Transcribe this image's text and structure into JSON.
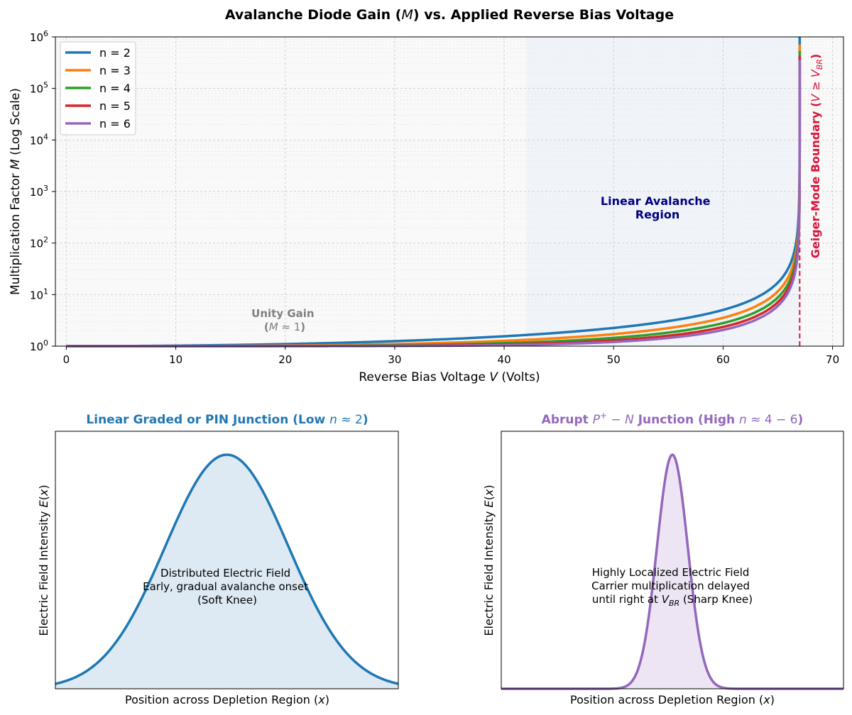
{
  "figure": {
    "title": "Avalanche Diode Gain (M) vs. Applied Reverse Bias Voltage"
  },
  "chart_data": [
    {
      "type": "line",
      "title": "Avalanche Diode Gain (M) vs. Applied Reverse Bias Voltage",
      "xlabel": "Reverse Bias Voltage V (Volts)",
      "ylabel": "Multiplication Factor M (Log Scale)",
      "xlim": [
        -1,
        71
      ],
      "ylim": [
        1,
        1000000
      ],
      "yscale": "log",
      "x_ticks": [
        0,
        10,
        20,
        30,
        40,
        50,
        60,
        70
      ],
      "x_tick_labels": [
        "0",
        "10",
        "20",
        "30",
        "40",
        "50",
        "60",
        "70"
      ],
      "y_ticks": [
        1,
        10,
        100,
        1000,
        10000,
        100000,
        1000000
      ],
      "y_tick_labels": [
        {
          "base": "10",
          "exp": "0"
        },
        {
          "base": "10",
          "exp": "1"
        },
        {
          "base": "10",
          "exp": "2"
        },
        {
          "base": "10",
          "exp": "3"
        },
        {
          "base": "10",
          "exp": "4"
        },
        {
          "base": "10",
          "exp": "5"
        },
        {
          "base": "10",
          "exp": "6"
        }
      ],
      "grid": true,
      "legend_position": "top-left",
      "breakdown_voltage": 67,
      "curve_model": "M = 1 / (1 - (V / 67)^n)",
      "series": [
        {
          "name": "n = 2",
          "n": 2,
          "color": "#1f77b4",
          "points": [
            [
              0,
              1.0
            ],
            [
              10,
              1.02
            ],
            [
              20,
              1.1
            ],
            [
              30,
              1.25
            ],
            [
              40,
              1.56
            ],
            [
              50,
              2.26
            ],
            [
              55,
              3.07
            ],
            [
              60,
              5.05
            ],
            [
              63,
              8.84
            ],
            [
              65,
              16.7
            ],
            [
              66,
              33.8
            ],
            [
              66.5,
              67.4
            ],
            [
              66.8,
              168
            ],
            [
              66.9,
              335
            ],
            [
              66.95,
              670
            ],
            [
              66.98,
              1675
            ],
            [
              66.99,
              3350
            ],
            [
              66.995,
              6700
            ],
            [
              66.998,
              16750
            ],
            [
              66.999,
              33500
            ],
            [
              66.9995,
              67000
            ],
            [
              66.9998,
              167500
            ],
            [
              66.9999,
              335000
            ],
            [
              66.99995,
              670000
            ],
            [
              66.99998,
              1000000
            ]
          ]
        },
        {
          "name": "n = 3",
          "n": 3,
          "color": "#ff7f0e",
          "points": [
            [
              0,
              1.0
            ],
            [
              10,
              1.0
            ],
            [
              20,
              1.03
            ],
            [
              30,
              1.1
            ],
            [
              40,
              1.27
            ],
            [
              50,
              1.71
            ],
            [
              55,
              2.24
            ],
            [
              60,
              3.55
            ],
            [
              63,
              5.99
            ],
            [
              65,
              11.0
            ],
            [
              66,
              22.3
            ],
            [
              66.5,
              44.8
            ],
            [
              66.8,
              112
            ],
            [
              66.9,
              224
            ],
            [
              66.95,
              447
            ],
            [
              66.98,
              1117
            ],
            [
              66.99,
              2233
            ],
            [
              66.995,
              4467
            ],
            [
              66.998,
              11167
            ],
            [
              66.999,
              22333
            ],
            [
              66.9995,
              44667
            ],
            [
              66.9998,
              111667
            ],
            [
              66.9999,
              223333
            ],
            [
              66.99995,
              446667
            ],
            [
              66.99998,
              1000000
            ]
          ]
        },
        {
          "name": "n = 4",
          "n": 4,
          "color": "#2ca02c",
          "points": [
            [
              0,
              1.0
            ],
            [
              10,
              1.0
            ],
            [
              20,
              1.01
            ],
            [
              30,
              1.04
            ],
            [
              40,
              1.15
            ],
            [
              50,
              1.45
            ],
            [
              55,
              1.83
            ],
            [
              60,
              2.8
            ],
            [
              63,
              4.58
            ],
            [
              65,
              8.37
            ],
            [
              66,
              16.9
            ],
            [
              66.5,
              33.8
            ],
            [
              66.8,
              84.3
            ],
            [
              66.9,
              168
            ],
            [
              66.95,
              335
            ],
            [
              66.98,
              838
            ],
            [
              66.99,
              1675
            ],
            [
              66.995,
              3350
            ],
            [
              66.998,
              8375
            ],
            [
              66.999,
              16750
            ],
            [
              66.9995,
              33500
            ],
            [
              66.9998,
              83750
            ],
            [
              66.9999,
              167500
            ],
            [
              66.99995,
              335000
            ],
            [
              66.99998,
              837500
            ]
          ]
        },
        {
          "name": "n = 5",
          "n": 5,
          "color": "#d62728",
          "points": [
            [
              0,
              1.0
            ],
            [
              10,
              1.0
            ],
            [
              20,
              1.0
            ],
            [
              30,
              1.02
            ],
            [
              40,
              1.08
            ],
            [
              50,
              1.3
            ],
            [
              55,
              1.59
            ],
            [
              60,
              2.35
            ],
            [
              63,
              3.73
            ],
            [
              65,
              6.77
            ],
            [
              66,
              13.6
            ],
            [
              66.5,
              27.1
            ],
            [
              66.8,
              67.5
            ],
            [
              66.9,
              134
            ],
            [
              66.95,
              268
            ],
            [
              66.98,
              670
            ],
            [
              66.99,
              1340
            ],
            [
              66.995,
              2680
            ],
            [
              66.998,
              6700
            ],
            [
              66.999,
              13400
            ],
            [
              66.9995,
              26800
            ],
            [
              66.9998,
              67000
            ],
            [
              66.9999,
              134000
            ],
            [
              66.99995,
              268000
            ],
            [
              66.99998,
              670000
            ]
          ]
        },
        {
          "name": "n = 6",
          "n": 6,
          "color": "#9467bd",
          "points": [
            [
              0,
              1.0
            ],
            [
              10,
              1.0
            ],
            [
              20,
              1.0
            ],
            [
              30,
              1.01
            ],
            [
              40,
              1.05
            ],
            [
              50,
              1.21
            ],
            [
              55,
              1.44
            ],
            [
              60,
              2.06
            ],
            [
              63,
              3.22
            ],
            [
              65,
              5.7
            ],
            [
              66,
              11.4
            ],
            [
              66.5,
              22.8
            ],
            [
              66.8,
              56.3
            ],
            [
              66.9,
              112
            ],
            [
              66.95,
              224
            ],
            [
              66.98,
              559
            ],
            [
              66.99,
              1117
            ],
            [
              66.995,
              2234
            ],
            [
              66.998,
              5584
            ],
            [
              66.999,
              11167
            ],
            [
              66.9995,
              22334
            ],
            [
              66.9998,
              55834
            ],
            [
              66.9999,
              111667
            ],
            [
              66.99995,
              223334
            ],
            [
              66.99998,
              558334
            ]
          ]
        }
      ],
      "regions": [
        {
          "name": "linear-avalanche",
          "x_start": 42,
          "x_end": 67,
          "color": "#dbe8f7"
        }
      ],
      "annotations": {
        "unity_gain": {
          "line1": "Unity Gain",
          "line2": "(M ≈ 1)",
          "x": 20,
          "y": 1.8,
          "color": "#808080"
        },
        "linear_region": {
          "line1": "Linear Avalanche",
          "line2": "Region",
          "x": 54,
          "y": 600,
          "color": "#000080"
        },
        "geiger": {
          "label": "Geiger-Mode Boundary (V ≥ V",
          "sub": "BR",
          "suffix": ")",
          "x": 67,
          "color": "#dc143c"
        }
      }
    },
    {
      "type": "area",
      "title": "Linear Graded or PIN Junction (Low n ≈ 2)",
      "title_color": "#1f77b4",
      "xlabel": "Position across Depletion Region (x)",
      "ylabel": "Electric Field Intensity E(x)",
      "xlim": [
        0,
        1
      ],
      "ylim": [
        0,
        1.1
      ],
      "profile": "gaussian",
      "center": 0.5,
      "sigma": 0.18,
      "peak": 1.0,
      "line_color": "#1f77b4",
      "fill_color": "#dde9f3",
      "annotation": [
        "Distributed Electric Field",
        "Early, gradual avalanche onset",
        "(Soft Knee)"
      ]
    },
    {
      "type": "area",
      "title": "Abrupt P+ − N Junction (High n ≈ 4 − 6)",
      "title_color": "#9467bd",
      "xlabel": "Position across Depletion Region (x)",
      "ylabel": "Electric Field Intensity E(x)",
      "xlim": [
        0,
        1
      ],
      "ylim": [
        0,
        1.1
      ],
      "profile": "gaussian",
      "center": 0.5,
      "sigma": 0.045,
      "peak": 1.0,
      "line_color": "#9467bd",
      "fill_color": "#ede5f3",
      "annotation": [
        "Highly Localized Electric Field",
        "Carrier multiplication delayed",
        "until right at V",
        "BR",
        " (Sharp Knee)"
      ]
    }
  ]
}
